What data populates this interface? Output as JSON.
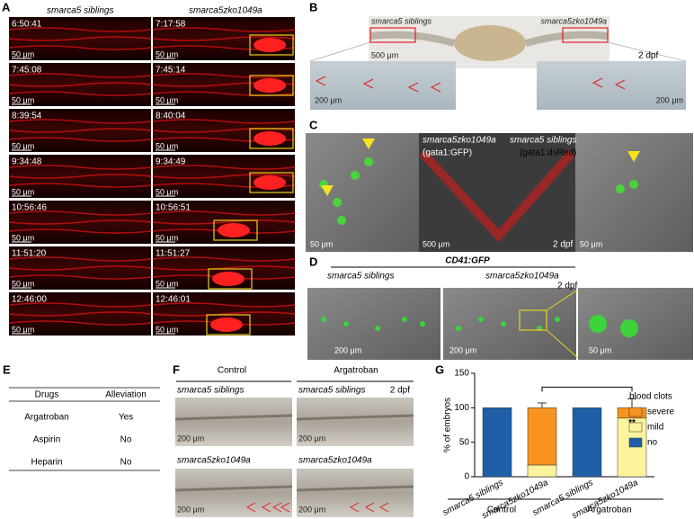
{
  "panel_a": {
    "label": "A",
    "left_title": "smarca5 siblings",
    "right_title": "smarca5zko1049a",
    "left_times": [
      "6:50:41",
      "7:45:08",
      "8:39:54",
      "9:34:48",
      "10:56:46",
      "11:51:20",
      "12:46:00"
    ],
    "right_times": [
      "7:17:58",
      "7:45:14",
      "8:40:04",
      "9:34:49",
      "10:56:51",
      "11:51:27",
      "12:46:01"
    ],
    "scale": "50 μm"
  },
  "panel_b": {
    "label": "B",
    "left_title": "smarca5 siblings",
    "right_title": "smarca5zko1049a",
    "scale_top": "500 μm",
    "stage": "2 dpf",
    "scale_inset": "200 μm"
  },
  "panel_c": {
    "label": "C",
    "mutant": "smarca5zko1049a",
    "siblings": "smarca5 siblings",
    "green": "(gata1:GFP)",
    "red": "(gata1:dsRed)",
    "scale_small": "50 μm",
    "scale_mid": "500 μm",
    "stage": "2 dpf"
  },
  "panel_d": {
    "label": "D",
    "title": "CD41:GFP",
    "left_title": "smarca5 siblings",
    "right_title": "smarca5zko1049a",
    "stage": "2 dpf",
    "scale": "200 μm",
    "scale_inset": "50 μm"
  },
  "panel_e": {
    "label": "E",
    "table": {
      "header": [
        "Drugs",
        "Alleviation"
      ],
      "rows": [
        [
          "Argatroban",
          "Yes"
        ],
        [
          "Aspirin",
          "No"
        ],
        [
          "Heparin",
          "No"
        ]
      ]
    }
  },
  "panel_f": {
    "label": "F",
    "groups": [
      "Control",
      "Argatroban"
    ],
    "siblings": "smarca5 siblings",
    "mutant": "smarca5zko1049a",
    "stage": "2 dpf",
    "scale": "200 μm"
  },
  "chart_data": {
    "type": "bar",
    "label": "G",
    "y_label": "% of embryos",
    "categories": [
      "smarca5 siblings",
      "smarca5zko1049a",
      "smarca5 siblings",
      "smarca5zko1049a"
    ],
    "groups": [
      "Control",
      "Argatroban"
    ],
    "ylim": [
      0,
      150
    ],
    "yticks": [
      0,
      50,
      100,
      150
    ],
    "legend_title": "blood clots",
    "annotation": "**",
    "series": [
      {
        "name": "no",
        "color": "#1f5fa8",
        "values": [
          100,
          0,
          100,
          0
        ]
      },
      {
        "name": "mild",
        "color": "#fbf49c",
        "values": [
          0,
          17,
          0,
          85
        ],
        "errors": [
          null,
          5,
          null,
          null
        ]
      },
      {
        "name": "severe",
        "color": "#f7931e",
        "values": [
          0,
          83,
          0,
          15
        ],
        "errors": [
          null,
          7,
          null,
          13
        ]
      }
    ]
  }
}
